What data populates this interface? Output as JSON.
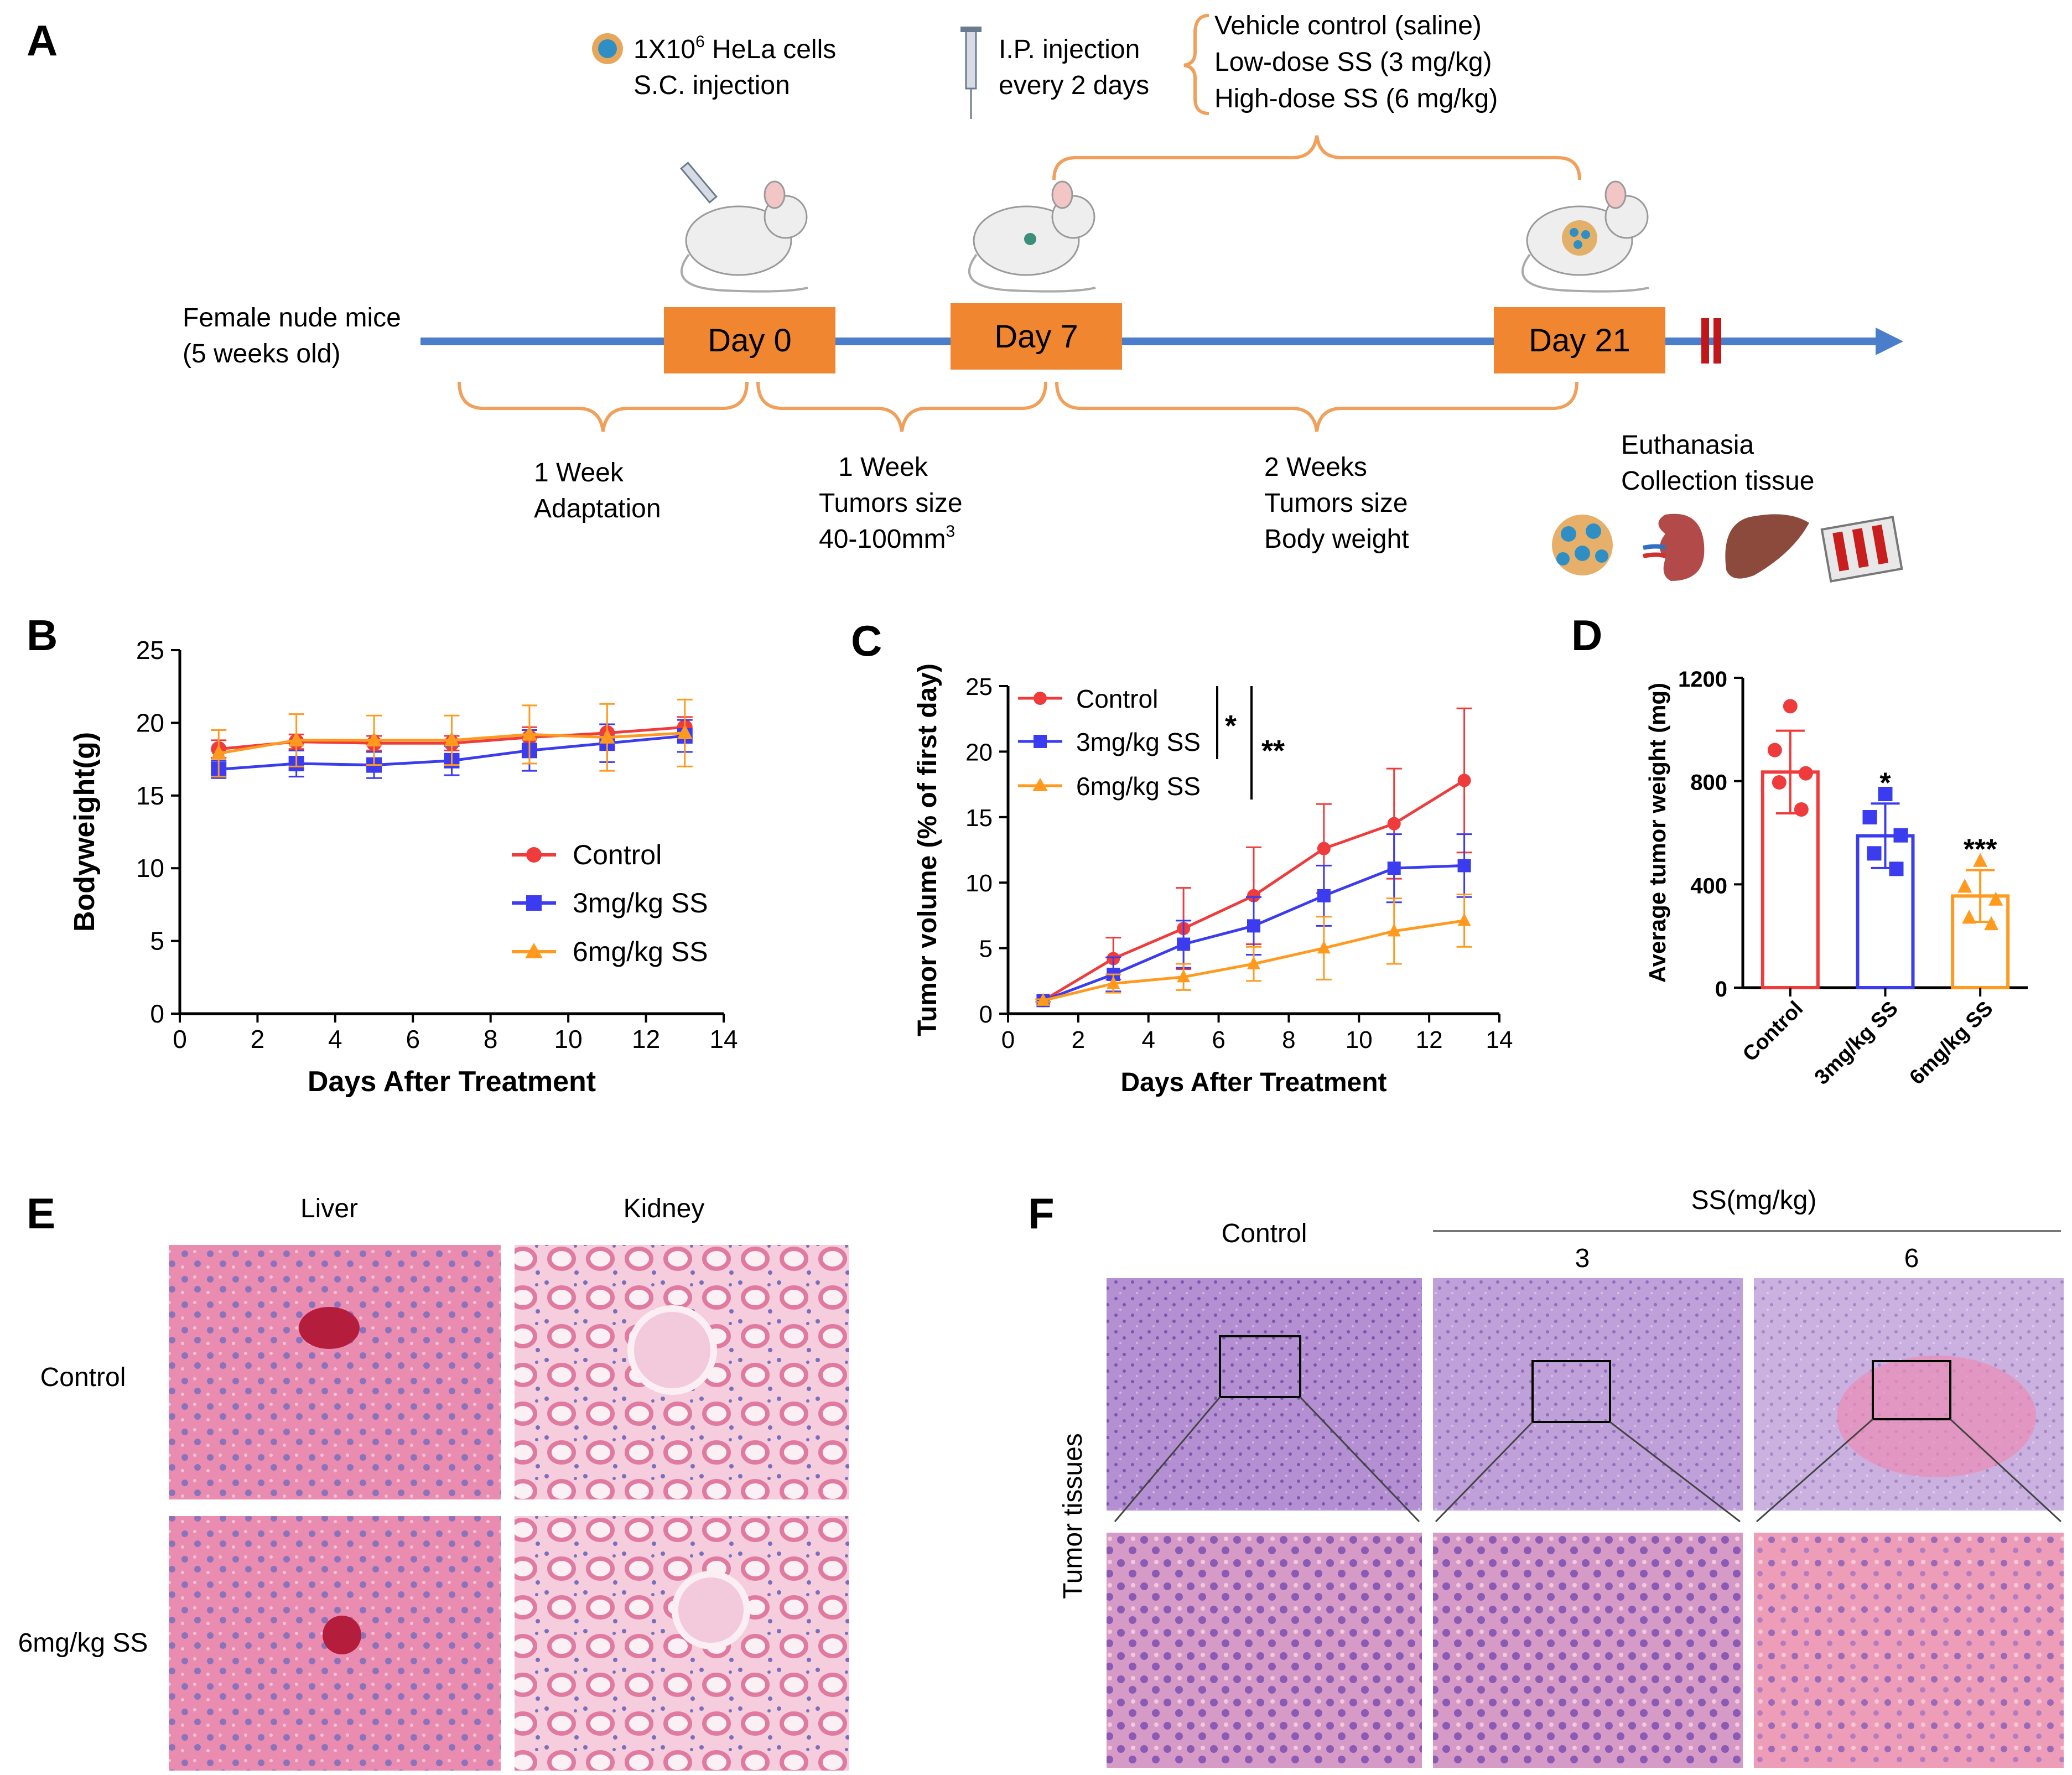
{
  "panels": {
    "A": "A",
    "B": "B",
    "C": "C",
    "D": "D",
    "E": "E",
    "F": "F"
  },
  "colors": {
    "control": "#ef3b3b",
    "low_dose": "#3b3bef",
    "high_dose": "#ff9a1f",
    "timeline": "#4a7ecb",
    "day_box": "#f0862f",
    "brace": "#f0a05a",
    "stop_mark": "#c0171a",
    "he_pink": "#e67fa8",
    "he_purple": "#a680c4"
  },
  "panel_a": {
    "cells_line1_prefix": "1X10",
    "cells_line1_sup": "6",
    "cells_line1_suffix": " HeLa cells",
    "cells_line2": "S.C. injection",
    "inject_line1": "I.P. injection",
    "inject_line2": "every 2 days",
    "group1": "Vehicle control (saline)",
    "group2": "Low-dose SS (3 mg/kg)",
    "group3": "High-dose SS (6 mg/kg)",
    "start_line1": "Female nude mice",
    "start_line2": "(5 weeks old)",
    "day0": "Day 0",
    "day7": "Day 7",
    "day21": "Day 21",
    "phase1_line1": "1 Week",
    "phase1_line2": "Adaptation",
    "phase2_line1": "1 Week",
    "phase2_line2": "Tumors size",
    "phase2_line3_prefix": "40-100mm",
    "phase2_line3_sup": "3",
    "phase3_line1": "2 Weeks",
    "phase3_line2": "Tumors size",
    "phase3_line3": "Body weight",
    "end_line1": "Euthanasia",
    "end_line2": "Collection tissue"
  },
  "chart_data": [
    {
      "panel": "B",
      "type": "line",
      "xlabel": "Days After Treatment",
      "ylabel": "Bodyweight(g)",
      "xlim": [
        0,
        14
      ],
      "ylim": [
        0,
        25
      ],
      "xticks": [
        0,
        2,
        4,
        6,
        8,
        10,
        12,
        14
      ],
      "yticks": [
        0,
        5,
        10,
        15,
        20,
        25
      ],
      "x": [
        1,
        3,
        5,
        7,
        9,
        11,
        13
      ],
      "legend_position": "center-right",
      "series": [
        {
          "name": "Control",
          "values": [
            18.2,
            18.7,
            18.6,
            18.6,
            19.0,
            19.3,
            19.7
          ],
          "errors": [
            0.6,
            0.5,
            0.5,
            0.5,
            0.7,
            0.6,
            0.7
          ]
        },
        {
          "name": "3mg/kg SS",
          "values": [
            16.8,
            17.2,
            17.1,
            17.4,
            18.1,
            18.6,
            19.1
          ],
          "errors": [
            0.6,
            0.9,
            0.9,
            1.0,
            1.4,
            1.3,
            1.1
          ]
        },
        {
          "name": "6mg/kg SS",
          "values": [
            17.9,
            18.8,
            18.8,
            18.8,
            19.2,
            19.0,
            19.3
          ],
          "errors": [
            1.6,
            1.8,
            1.7,
            1.7,
            2.0,
            2.3,
            2.3
          ]
        }
      ]
    },
    {
      "panel": "C",
      "type": "line",
      "xlabel": "Days After Treatment",
      "ylabel": "Tumor volume (% of first day)",
      "xlim": [
        0,
        14
      ],
      "ylim": [
        0,
        25
      ],
      "xticks": [
        0,
        2,
        4,
        6,
        8,
        10,
        12,
        14
      ],
      "yticks": [
        0,
        5,
        10,
        15,
        20,
        25
      ],
      "x": [
        1,
        3,
        5,
        7,
        9,
        11,
        13
      ],
      "legend_position": "top-left",
      "significance": [
        "*",
        "**"
      ],
      "series": [
        {
          "name": "Control",
          "values": [
            1.0,
            4.2,
            6.5,
            9.0,
            12.6,
            14.5,
            17.8
          ],
          "errors": [
            0.1,
            1.6,
            3.1,
            3.7,
            3.4,
            4.2,
            5.5
          ]
        },
        {
          "name": "3mg/kg SS",
          "values": [
            1.0,
            3.0,
            5.3,
            6.7,
            9.0,
            11.1,
            11.3
          ],
          "errors": [
            0.1,
            1.3,
            1.8,
            2.2,
            2.3,
            2.6,
            2.4
          ]
        },
        {
          "name": "6mg/kg SS",
          "values": [
            1.0,
            2.3,
            2.8,
            3.8,
            5.0,
            6.3,
            7.1
          ],
          "errors": [
            0.1,
            0.7,
            1.0,
            1.3,
            2.4,
            2.5,
            2.0
          ]
        }
      ]
    },
    {
      "panel": "D",
      "type": "bar",
      "ylabel": "Average tumor weight (mg)",
      "ylim": [
        0,
        1200
      ],
      "yticks": [
        0,
        400,
        800,
        1200
      ],
      "categories": [
        "Control",
        "3mg/kg SS",
        "6mg/kg SS"
      ],
      "values": [
        835,
        588,
        355
      ],
      "errors": [
        160,
        125,
        100
      ],
      "points": [
        [
          1090,
          920,
          830,
          795,
          690
        ],
        [
          750,
          660,
          590,
          520,
          460
        ],
        [
          490,
          390,
          340,
          270,
          245
        ]
      ],
      "significance": [
        "",
        "*",
        "***"
      ]
    }
  ],
  "panel_e": {
    "col1": "Liver",
    "col2": "Kidney",
    "row1": "Control",
    "row2": "6mg/kg SS"
  },
  "panel_f": {
    "col_control": "Control",
    "group_header": "SS(mg/kg)",
    "col_low": "3",
    "col_high": "6",
    "row_label": "Tumor tissues"
  }
}
